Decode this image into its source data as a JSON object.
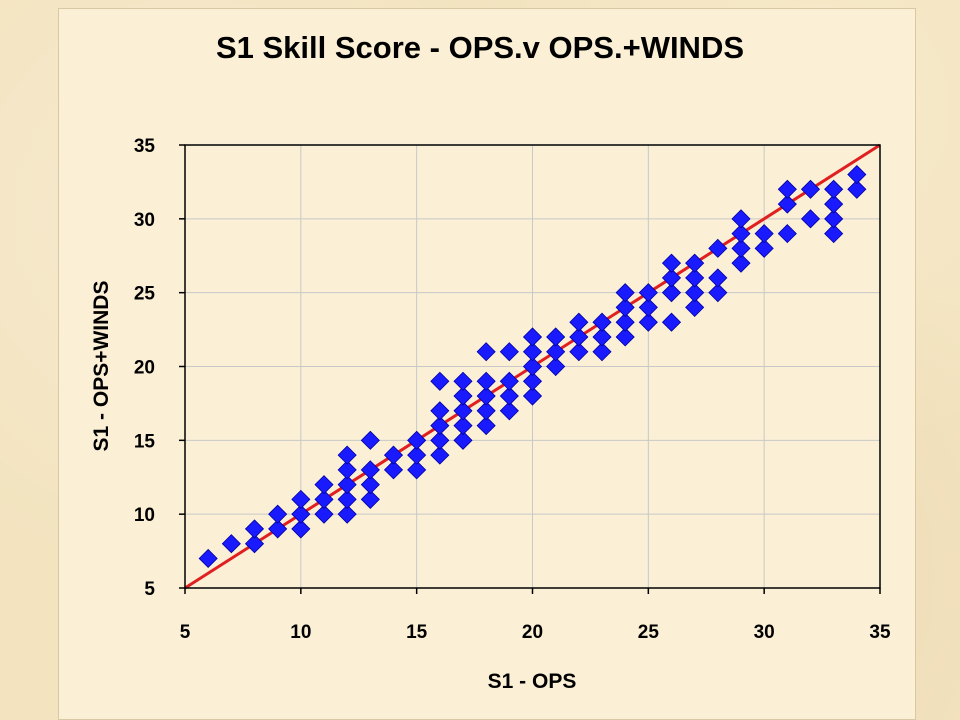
{
  "chart_data": {
    "type": "scatter",
    "title": "S1 Skill Score - OPS.v OPS.+WINDS",
    "xlabel": "S1 - OPS",
    "ylabel": "S1 - OPS+WINDS",
    "xlim": [
      5,
      35
    ],
    "ylim": [
      5,
      35
    ],
    "xticks": [
      5,
      10,
      15,
      20,
      25,
      30,
      35
    ],
    "yticks": [
      5,
      10,
      15,
      20,
      25,
      30,
      35
    ],
    "grid": true,
    "marker": "diamond",
    "marker_color": "#1a1aff",
    "line_color": "#e02020",
    "reference_line": {
      "x": [
        5,
        35
      ],
      "y": [
        5,
        35
      ]
    },
    "points": [
      [
        6,
        7
      ],
      [
        7,
        8
      ],
      [
        8,
        8
      ],
      [
        8,
        9
      ],
      [
        9,
        9
      ],
      [
        9,
        10
      ],
      [
        10,
        9
      ],
      [
        10,
        10
      ],
      [
        10,
        11
      ],
      [
        11,
        10
      ],
      [
        11,
        11
      ],
      [
        11,
        12
      ],
      [
        12,
        10
      ],
      [
        12,
        11
      ],
      [
        12,
        12
      ],
      [
        12,
        13
      ],
      [
        12,
        14
      ],
      [
        13,
        11
      ],
      [
        13,
        12
      ],
      [
        13,
        13
      ],
      [
        13,
        15
      ],
      [
        14,
        13
      ],
      [
        14,
        14
      ],
      [
        15,
        13
      ],
      [
        15,
        14
      ],
      [
        15,
        15
      ],
      [
        16,
        14
      ],
      [
        16,
        15
      ],
      [
        16,
        16
      ],
      [
        16,
        17
      ],
      [
        16,
        19
      ],
      [
        17,
        15
      ],
      [
        17,
        16
      ],
      [
        17,
        17
      ],
      [
        17,
        18
      ],
      [
        17,
        19
      ],
      [
        18,
        16
      ],
      [
        18,
        17
      ],
      [
        18,
        18
      ],
      [
        18,
        19
      ],
      [
        18,
        21
      ],
      [
        19,
        17
      ],
      [
        19,
        18
      ],
      [
        19,
        19
      ],
      [
        19,
        21
      ],
      [
        20,
        18
      ],
      [
        20,
        19
      ],
      [
        20,
        20
      ],
      [
        20,
        21
      ],
      [
        20,
        22
      ],
      [
        21,
        20
      ],
      [
        21,
        21
      ],
      [
        21,
        22
      ],
      [
        22,
        21
      ],
      [
        22,
        22
      ],
      [
        22,
        23
      ],
      [
        23,
        21
      ],
      [
        23,
        22
      ],
      [
        23,
        23
      ],
      [
        24,
        22
      ],
      [
        24,
        23
      ],
      [
        24,
        24
      ],
      [
        24,
        25
      ],
      [
        25,
        23
      ],
      [
        25,
        24
      ],
      [
        25,
        25
      ],
      [
        26,
        23
      ],
      [
        26,
        25
      ],
      [
        26,
        26
      ],
      [
        26,
        27
      ],
      [
        27,
        24
      ],
      [
        27,
        25
      ],
      [
        27,
        26
      ],
      [
        27,
        27
      ],
      [
        28,
        25
      ],
      [
        28,
        26
      ],
      [
        28,
        28
      ],
      [
        29,
        27
      ],
      [
        29,
        28
      ],
      [
        29,
        29
      ],
      [
        29,
        30
      ],
      [
        30,
        28
      ],
      [
        30,
        29
      ],
      [
        31,
        29
      ],
      [
        31,
        31
      ],
      [
        31,
        32
      ],
      [
        32,
        30
      ],
      [
        32,
        32
      ],
      [
        33,
        29
      ],
      [
        33,
        30
      ],
      [
        33,
        31
      ],
      [
        33,
        32
      ],
      [
        34,
        32
      ],
      [
        34,
        33
      ]
    ]
  }
}
